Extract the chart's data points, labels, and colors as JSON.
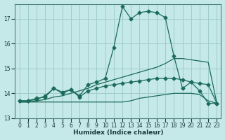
{
  "xlabel": "Humidex (Indice chaleur)",
  "bg_color": "#c5e8e8",
  "grid_color": "#a0cccc",
  "line_color": "#1a6b5a",
  "xlim": [
    -0.5,
    23.5
  ],
  "ylim": [
    13.0,
    17.6
  ],
  "yticks": [
    13,
    14,
    15,
    16,
    17
  ],
  "xticks": [
    0,
    1,
    2,
    3,
    4,
    5,
    6,
    7,
    8,
    9,
    10,
    11,
    12,
    13,
    14,
    15,
    16,
    17,
    18,
    19,
    20,
    21,
    22,
    23
  ],
  "series": [
    {
      "x": [
        0,
        1,
        2,
        3,
        4,
        5,
        6,
        7,
        8,
        9,
        10,
        11,
        12,
        13,
        14,
        15,
        16,
        17,
        18,
        19,
        20,
        21,
        22,
        23
      ],
      "y": [
        13.7,
        13.7,
        13.8,
        13.85,
        14.2,
        14.05,
        14.15,
        13.9,
        14.35,
        14.45,
        14.6,
        15.85,
        17.5,
        17.0,
        17.25,
        17.3,
        17.25,
        17.05,
        15.5,
        14.2,
        14.45,
        14.1,
        13.6,
        13.6
      ],
      "marker": "D",
      "markersize": 2.5,
      "lw": 0.9
    },
    {
      "x": [
        0,
        1,
        2,
        3,
        4,
        5,
        6,
        7,
        8,
        9,
        10,
        11,
        12,
        13,
        14,
        15,
        16,
        17,
        18,
        19,
        20,
        21,
        22,
        23
      ],
      "y": [
        13.65,
        13.65,
        13.7,
        13.75,
        13.85,
        13.9,
        14.0,
        14.1,
        14.2,
        14.35,
        14.45,
        14.55,
        14.65,
        14.75,
        14.85,
        14.95,
        15.05,
        15.2,
        15.4,
        15.4,
        15.35,
        15.3,
        15.25,
        13.6
      ],
      "marker": null,
      "markersize": 0,
      "lw": 0.9
    },
    {
      "x": [
        0,
        1,
        2,
        3,
        4,
        5,
        6,
        7,
        8,
        9,
        10,
        11,
        12,
        13,
        14,
        15,
        16,
        17,
        18,
        19,
        20,
        21,
        22,
        23
      ],
      "y": [
        13.65,
        13.65,
        13.65,
        13.65,
        13.65,
        13.65,
        13.65,
        13.65,
        13.65,
        13.65,
        13.65,
        13.65,
        13.65,
        13.7,
        13.8,
        13.85,
        13.9,
        13.95,
        14.0,
        14.0,
        14.0,
        13.95,
        13.7,
        13.6
      ],
      "marker": null,
      "markersize": 0,
      "lw": 0.9
    },
    {
      "x": [
        0,
        1,
        2,
        3,
        4,
        5,
        6,
        7,
        8,
        9,
        10,
        11,
        12,
        13,
        14,
        15,
        16,
        17,
        18,
        19,
        20,
        21,
        22,
        23
      ],
      "y": [
        13.7,
        13.7,
        13.75,
        13.9,
        14.2,
        14.0,
        14.15,
        13.85,
        14.1,
        14.2,
        14.3,
        14.35,
        14.4,
        14.45,
        14.5,
        14.55,
        14.6,
        14.6,
        14.6,
        14.55,
        14.45,
        14.4,
        14.35,
        13.6
      ],
      "marker": "D",
      "markersize": 2.5,
      "lw": 0.9
    }
  ]
}
